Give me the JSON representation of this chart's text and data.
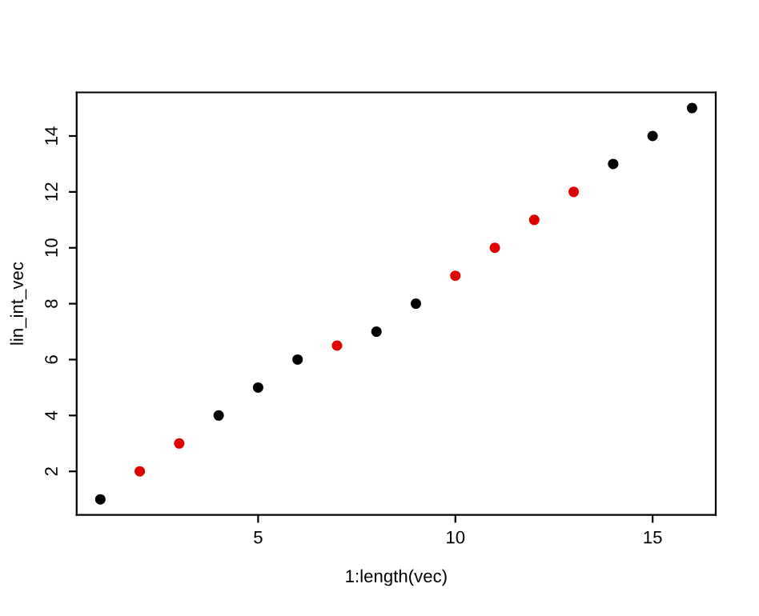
{
  "chart_data": {
    "type": "scatter",
    "xlabel": "1:length(vec)",
    "ylabel": "lin_int_vec",
    "series": [
      {
        "color": "#000000",
        "x": [
          1,
          4,
          5,
          6,
          8,
          9,
          14,
          15,
          16
        ],
        "values": [
          1,
          4,
          5,
          6,
          7,
          8,
          13,
          14,
          15
        ]
      },
      {
        "color": "#df0000",
        "x": [
          2,
          3,
          7,
          10,
          11,
          12,
          13
        ],
        "values": [
          2,
          3,
          6.5,
          9,
          10,
          11,
          12
        ]
      }
    ],
    "xlim": [
      0.4,
      16.6
    ],
    "ylim": [
      0.44,
      15.56
    ],
    "xticks": [
      5,
      10,
      15
    ],
    "yticks": [
      2,
      4,
      6,
      8,
      10,
      12,
      14
    ],
    "marker": "circle",
    "grid": false,
    "legend": false
  }
}
